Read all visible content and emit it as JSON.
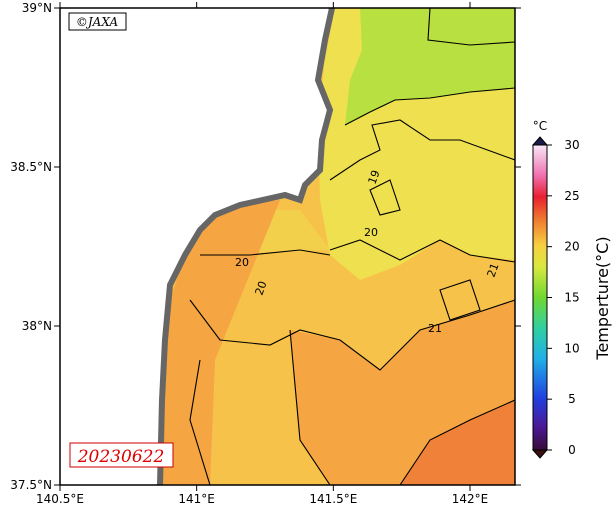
{
  "map": {
    "credit": "©JAXA",
    "date": "20230622",
    "lat_ticks": [
      {
        "value": 39,
        "label": "39°N"
      },
      {
        "value": 38.5,
        "label": "38.5°N"
      },
      {
        "value": 38,
        "label": "38°N"
      },
      {
        "value": 37.5,
        "label": "37.5°N"
      }
    ],
    "lon_ticks": [
      {
        "value": 140.5,
        "label": "140.5°E"
      },
      {
        "value": 141,
        "label": "141°E"
      },
      {
        "value": 141.5,
        "label": "141.5°E"
      },
      {
        "value": 142,
        "label": "142°E"
      }
    ],
    "contour_labels": [
      "19",
      "20",
      "20",
      "20",
      "21",
      "21"
    ],
    "colorbar": {
      "unit": "°C",
      "label": "Temperture(°C)",
      "ticks": [
        0,
        5,
        10,
        15,
        20,
        25,
        30
      ]
    }
  }
}
